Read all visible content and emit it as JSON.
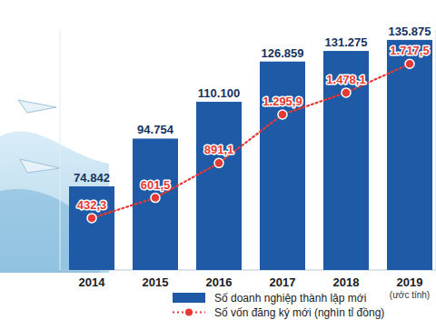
{
  "chart_data": {
    "type": "bar",
    "categories": [
      "2014",
      "2015",
      "2016",
      "2017",
      "2018",
      "2019"
    ],
    "annotations": [
      "(ước tính)"
    ],
    "series": [
      {
        "name": "Số doanh nghiệp thành lập mới",
        "type": "bar",
        "color": "#1f5aa6",
        "values": [
          74842,
          94754,
          110100,
          126859,
          131275,
          135875
        ],
        "value_labels": [
          "74.842",
          "94.754",
          "110.100",
          "126.859",
          "131.275",
          "135.875"
        ]
      },
      {
        "name": "Số vốn đăng ký mới (nghìn tỉ đồng)",
        "type": "line",
        "axis": "y2",
        "color": "#e53935",
        "line_style": "dotted",
        "marker": "circle",
        "values": [
          432.3,
          601.5,
          891.1,
          1295.9,
          1478.1,
          1717.5
        ],
        "value_labels": [
          "432,3",
          "601,5",
          "891,1",
          "1.295,9",
          "1.478,1",
          "1.717,5"
        ]
      }
    ],
    "ylim": [
      40000,
      140000
    ],
    "y2lim": [
      0,
      2000
    ],
    "data_labels": true,
    "tick_labels": "x",
    "grid": false,
    "legend": "bottom"
  }
}
